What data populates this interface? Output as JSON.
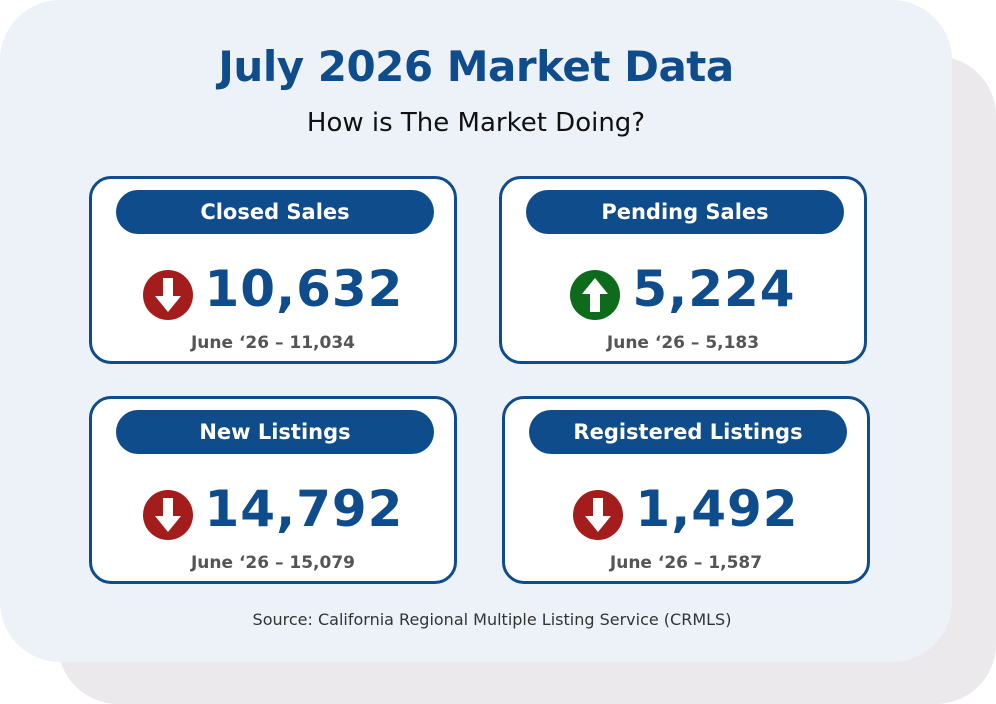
{
  "header": {
    "title": "July 2026 Market Data",
    "subtitle": "How is The Market Doing?"
  },
  "stats": [
    {
      "label": "Closed Sales",
      "value": "10,632",
      "previous": "June ‘26 – 11,034",
      "trend": "down",
      "trend_icon": "arrow-down-icon"
    },
    {
      "label": "Pending Sales",
      "value": "5,224",
      "previous": "June ‘26 – 5,183",
      "trend": "up",
      "trend_icon": "arrow-up-icon"
    },
    {
      "label": "New Listings",
      "value": "14,792",
      "previous": "June ‘26 – 15,079",
      "trend": "down",
      "trend_icon": "arrow-down-icon"
    },
    {
      "label": "Registered Listings",
      "value": "1,492",
      "previous": "June ‘26 – 1,587",
      "trend": "down",
      "trend_icon": "arrow-down-icon"
    }
  ],
  "footer": {
    "source": "Source: California Regional Multiple Listing Service (CRMLS)"
  },
  "colors": {
    "brand_blue": "#0f4c8c",
    "down_red": "#a51c1c",
    "up_green": "#0e6b1c",
    "card_background": "#edf2f9",
    "shadow_card": "#ebe9ec"
  }
}
